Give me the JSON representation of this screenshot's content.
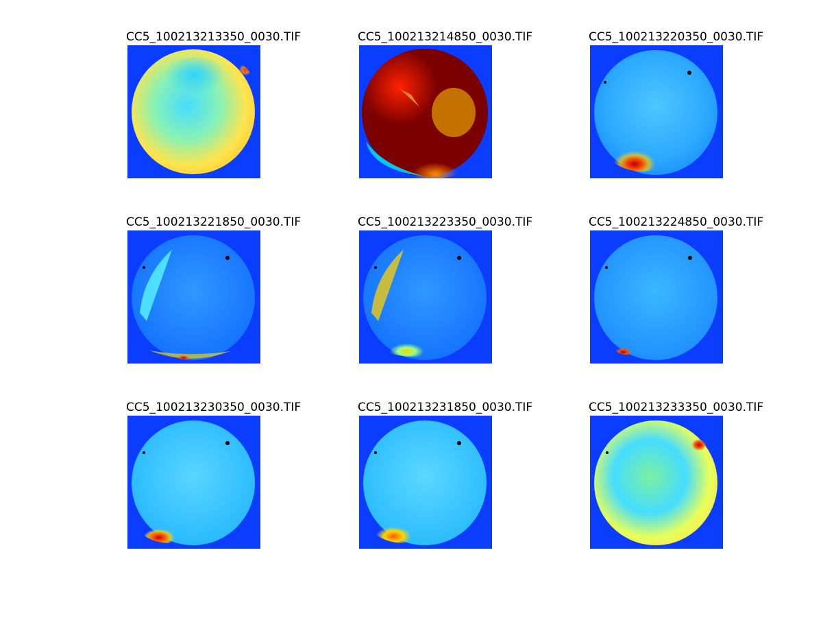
{
  "figure": {
    "background": "#ffffff",
    "colormap": "jet",
    "panels": [
      {
        "title": "CC5_100213213350_0030.TIF",
        "image": "all-sky-fisheye-heatmap",
        "dominant_color": "#37d2ff",
        "hotspot_color": "#ff3b00"
      },
      {
        "title": "CC5_100213214850_0030.TIF",
        "image": "all-sky-fisheye-heatmap",
        "dominant_color": "#8a0000",
        "hotspot_color": "#ff2000"
      },
      {
        "title": "CC5_100213220350_0030.TIF",
        "image": "all-sky-fisheye-heatmap",
        "dominant_color": "#2fb8ff",
        "hotspot_color": "#b60000"
      },
      {
        "title": "CC5_100213221850_0030.TIF",
        "image": "all-sky-fisheye-heatmap",
        "dominant_color": "#1484ff",
        "hotspot_color": "#aa0000"
      },
      {
        "title": "CC5_100213223350_0030.TIF",
        "image": "all-sky-fisheye-heatmap",
        "dominant_color": "#1685ff",
        "hotspot_color": "#ffcf00"
      },
      {
        "title": "CC5_100213224850_0030.TIF",
        "image": "all-sky-fisheye-heatmap",
        "dominant_color": "#2ea4ff",
        "hotspot_color": "#a10000"
      },
      {
        "title": "CC5_100213230350_0030.TIF",
        "image": "all-sky-fisheye-heatmap",
        "dominant_color": "#28beff",
        "hotspot_color": "#d10000"
      },
      {
        "title": "CC5_100213231850_0030.TIF",
        "image": "all-sky-fisheye-heatmap",
        "dominant_color": "#27c1ff",
        "hotspot_color": "#ff5a00"
      },
      {
        "title": "CC5_100213233350_0030.TIF",
        "image": "all-sky-fisheye-heatmap",
        "dominant_color": "#47ddff",
        "hotspot_color": "#b70000"
      }
    ]
  }
}
